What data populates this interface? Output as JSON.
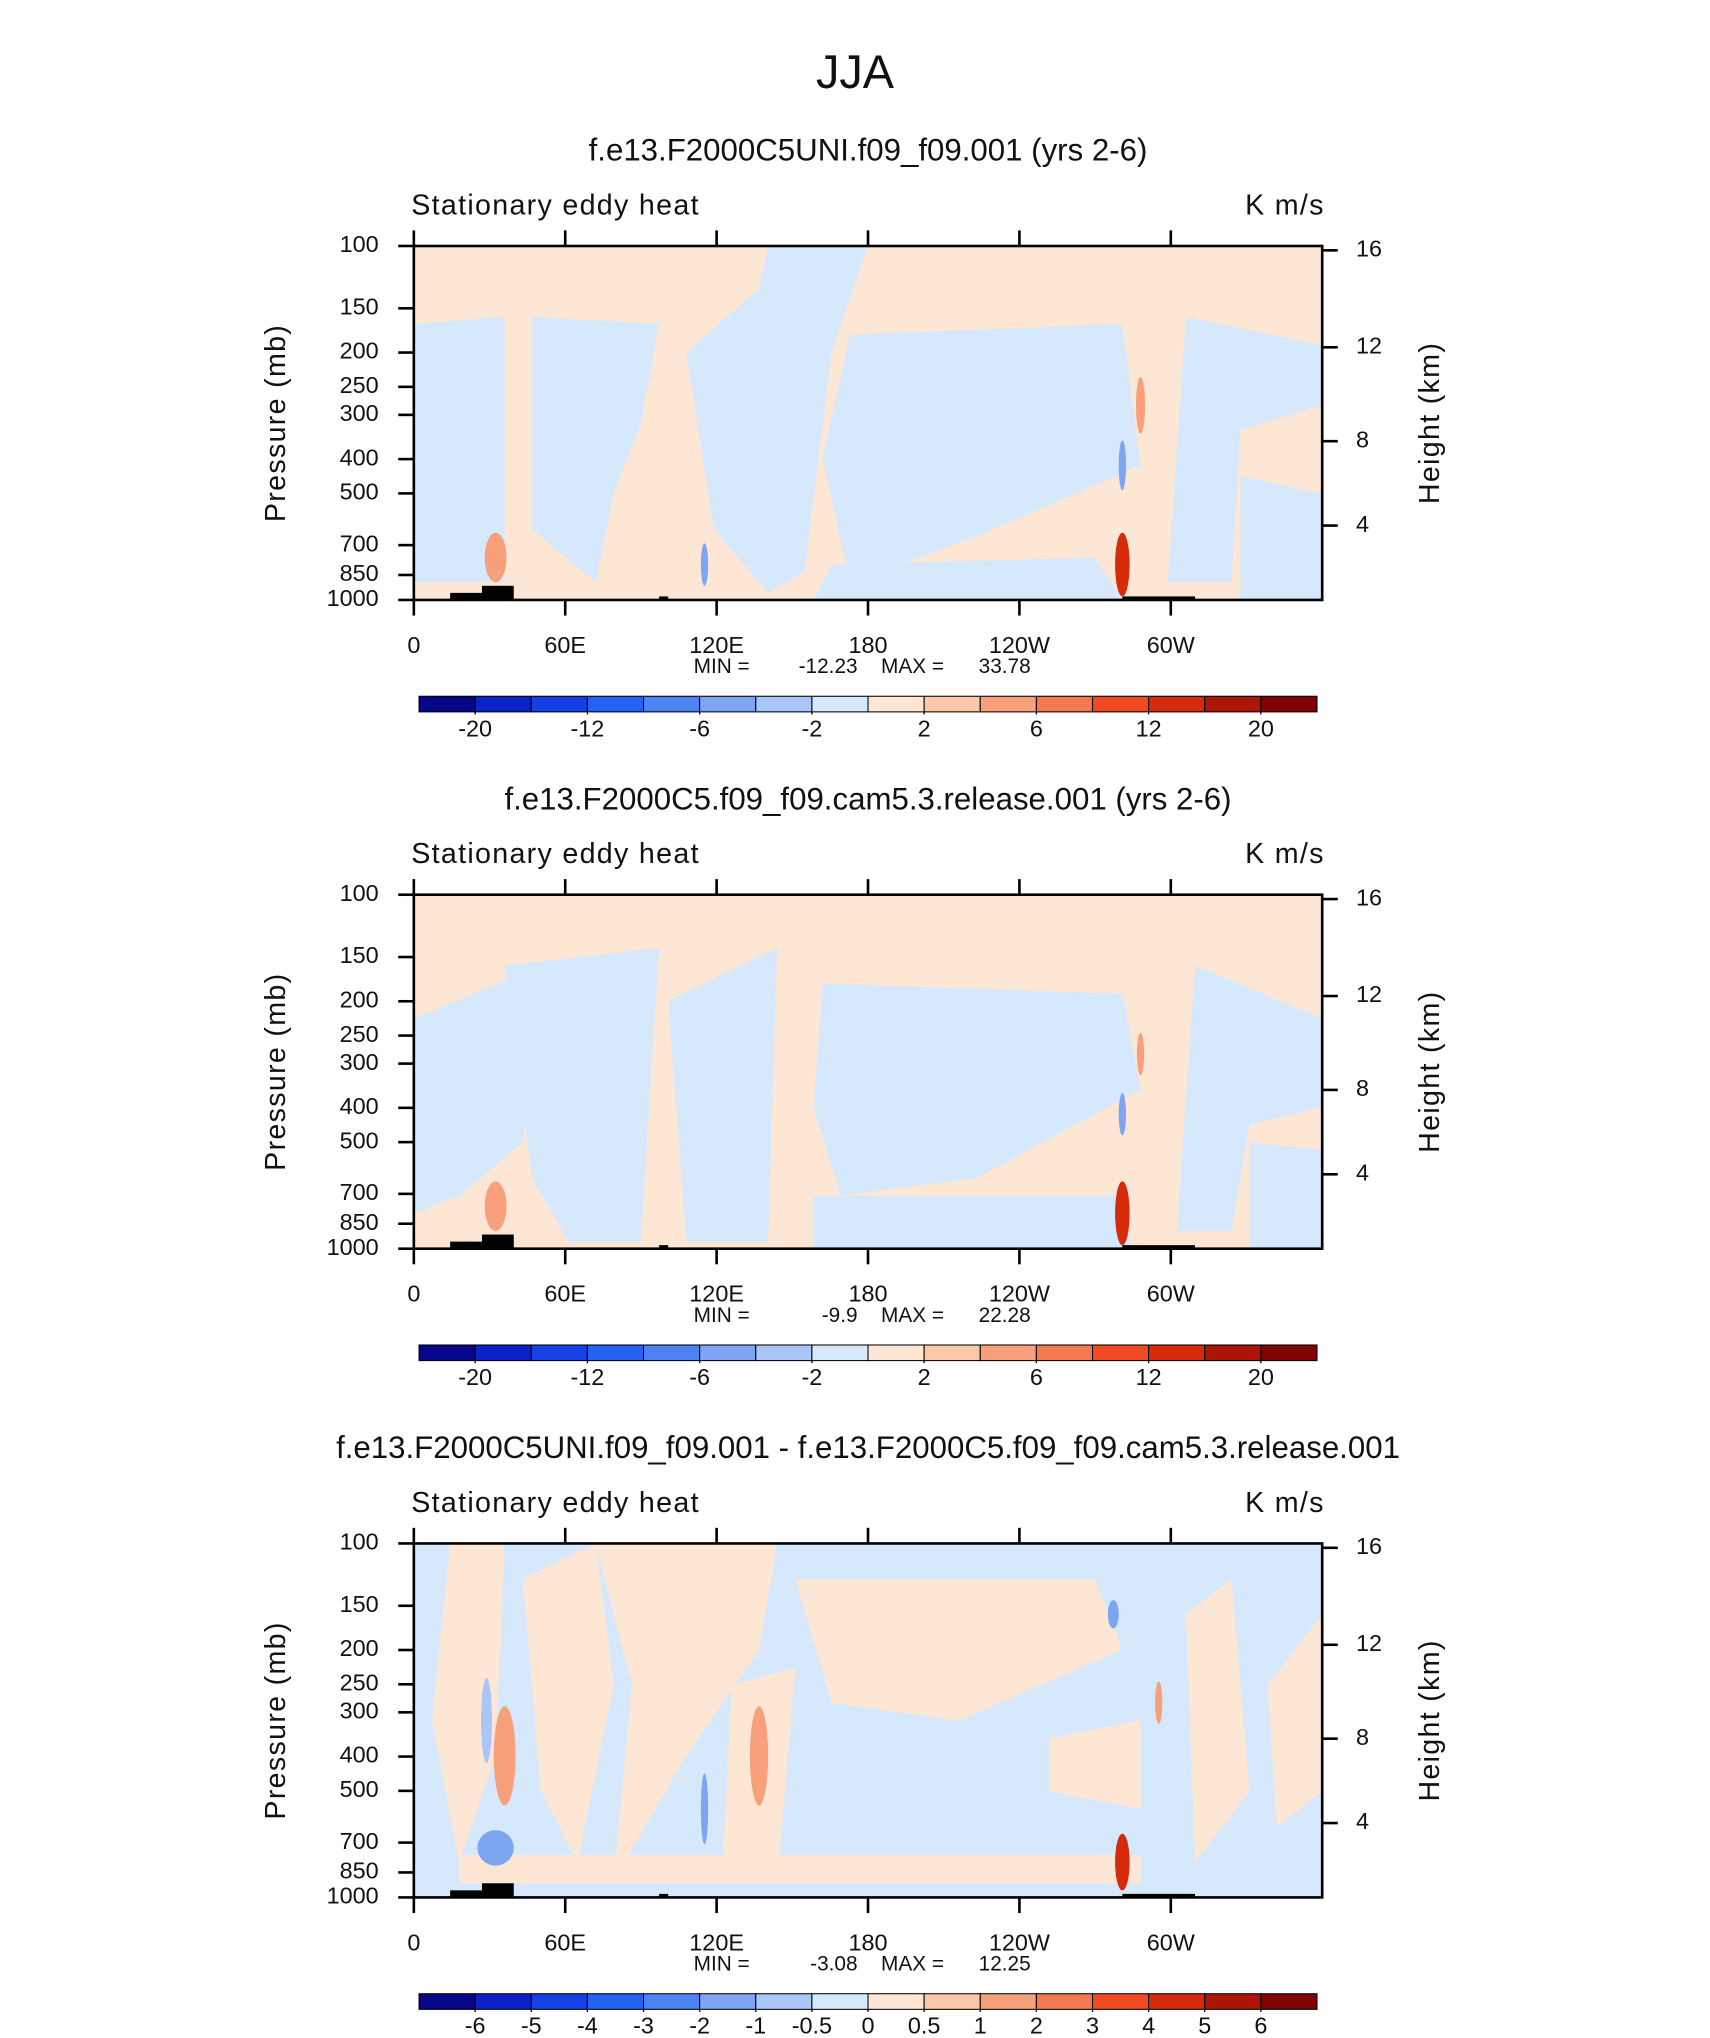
{
  "figure_title": "JJA",
  "chart_data": [
    {
      "type": "contour",
      "title": "f.e13.F2000C5UNI.f09_f09.001 (yrs 2-6)",
      "left_string": "Stationary eddy heat",
      "right_string": "K m/s",
      "ylabel": "Pressure (mb)",
      "y2label": "Height (km)",
      "ylog": true,
      "ylim": [
        1000,
        100
      ],
      "yticks": [
        100,
        150,
        200,
        250,
        300,
        400,
        500,
        700,
        850,
        1000
      ],
      "y2ticks": [
        4,
        8,
        12,
        16
      ],
      "xlim": [
        0,
        360
      ],
      "xticks": [
        0,
        {
          "value": 60,
          "label": "60E"
        },
        {
          "value": 120,
          "label": "120E"
        },
        180,
        {
          "value": 240,
          "label": "120W"
        },
        {
          "value": 300,
          "label": "60W"
        }
      ],
      "min_label": "MIN =",
      "min": -12.23,
      "max_label": "MAX =",
      "max": 33.78,
      "colorbar": {
        "levels": [
          -20,
          -16,
          -12,
          -9,
          -6,
          -4,
          -2,
          0,
          2,
          4,
          6,
          9,
          12,
          16,
          20
        ],
        "ticks": [
          -20,
          -12,
          -6,
          -2,
          2,
          6,
          12,
          20
        ],
        "colors": [
          "#06068a",
          "#0a22c8",
          "#1440e4",
          "#2462f2",
          "#4c82f2",
          "#7ea4f4",
          "#aac6f8",
          "#d6e8fc",
          "#fde6d4",
          "#fcc8aa",
          "#f8a07c",
          "#f47850",
          "#f04a22",
          "#d62a0c",
          "#ac1606",
          "#800404"
        ]
      }
    },
    {
      "type": "contour",
      "title": "f.e13.F2000C5.f09_f09.cam5.3.release.001 (yrs 2-6)",
      "left_string": "Stationary eddy heat",
      "right_string": "K m/s",
      "ylabel": "Pressure (mb)",
      "y2label": "Height (km)",
      "ylog": true,
      "ylim": [
        1000,
        100
      ],
      "yticks": [
        100,
        150,
        200,
        250,
        300,
        400,
        500,
        700,
        850,
        1000
      ],
      "y2ticks": [
        4,
        8,
        12,
        16
      ],
      "xlim": [
        0,
        360
      ],
      "xticks": [
        0,
        {
          "value": 60,
          "label": "60E"
        },
        {
          "value": 120,
          "label": "120E"
        },
        180,
        {
          "value": 240,
          "label": "120W"
        },
        {
          "value": 300,
          "label": "60W"
        }
      ],
      "min_label": "MIN =",
      "min": -9.9,
      "max_label": "MAX =",
      "max": 22.28,
      "colorbar": {
        "levels": [
          -20,
          -16,
          -12,
          -9,
          -6,
          -4,
          -2,
          0,
          2,
          4,
          6,
          9,
          12,
          16,
          20
        ],
        "ticks": [
          -20,
          -12,
          -6,
          -2,
          2,
          6,
          12,
          20
        ],
        "colors": [
          "#06068a",
          "#0a22c8",
          "#1440e4",
          "#2462f2",
          "#4c82f2",
          "#7ea4f4",
          "#aac6f8",
          "#d6e8fc",
          "#fde6d4",
          "#fcc8aa",
          "#f8a07c",
          "#f47850",
          "#f04a22",
          "#d62a0c",
          "#ac1606",
          "#800404"
        ]
      }
    },
    {
      "type": "contour",
      "title": "f.e13.F2000C5UNI.f09_f09.001 - f.e13.F2000C5.f09_f09.cam5.3.release.001",
      "left_string": "Stationary eddy heat",
      "right_string": "K m/s",
      "ylabel": "Pressure (mb)",
      "y2label": "Height (km)",
      "ylog": true,
      "ylim": [
        1000,
        100
      ],
      "yticks": [
        100,
        150,
        200,
        250,
        300,
        400,
        500,
        700,
        850,
        1000
      ],
      "y2ticks": [
        4,
        8,
        12,
        16
      ],
      "xlim": [
        0,
        360
      ],
      "xticks": [
        0,
        {
          "value": 60,
          "label": "60E"
        },
        {
          "value": 120,
          "label": "120E"
        },
        180,
        {
          "value": 240,
          "label": "120W"
        },
        {
          "value": 300,
          "label": "60W"
        }
      ],
      "min_label": "MIN =",
      "min": -3.08,
      "max_label": "MAX =",
      "max": 12.25,
      "colorbar": {
        "levels": [
          -6,
          -5,
          -4,
          -3,
          -2,
          -1,
          -0.5,
          0,
          0.5,
          1,
          2,
          3,
          4,
          5,
          6
        ],
        "ticks": [
          -6,
          -5,
          -4,
          -3,
          -2,
          -1,
          -0.5,
          0,
          0.5,
          1,
          2,
          3,
          4,
          5,
          6
        ],
        "colors": [
          "#06068a",
          "#0a22c8",
          "#1440e4",
          "#2462f2",
          "#4c82f2",
          "#7ea4f4",
          "#aac6f8",
          "#d6e8fc",
          "#fde6d4",
          "#fcc8aa",
          "#f8a07c",
          "#f47850",
          "#f04a22",
          "#d62a0c",
          "#ac1606",
          "#800404"
        ]
      }
    }
  ]
}
